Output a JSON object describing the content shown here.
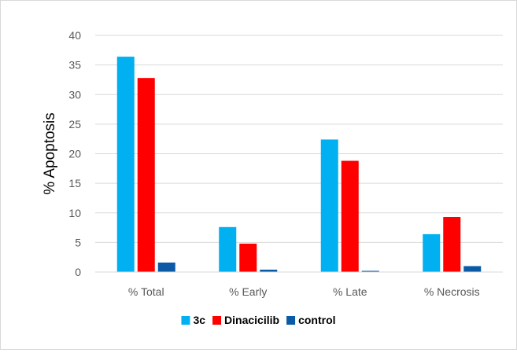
{
  "chart_data": {
    "type": "bar",
    "title": "",
    "xlabel": "",
    "ylabel": "% Apoptosis",
    "ylim": [
      0,
      40
    ],
    "yticks": [
      "0",
      "5",
      "10",
      "15",
      "20",
      "25",
      "30",
      "35",
      "40"
    ],
    "categories": [
      "% Total",
      "% Early",
      "% Late",
      "% Necrosis"
    ],
    "grid": true,
    "legend_position": "bottom",
    "series": [
      {
        "name": "3c",
        "color": "#00b0f0",
        "values": [
          36.4,
          7.6,
          22.4,
          6.4
        ]
      },
      {
        "name": "Dinacicilib",
        "color": "#ff0000",
        "values": [
          32.8,
          4.8,
          18.8,
          9.3
        ]
      },
      {
        "name": "control",
        "color": "#0a5aa6",
        "values": [
          1.6,
          0.4,
          0.2,
          1.0
        ]
      }
    ]
  }
}
